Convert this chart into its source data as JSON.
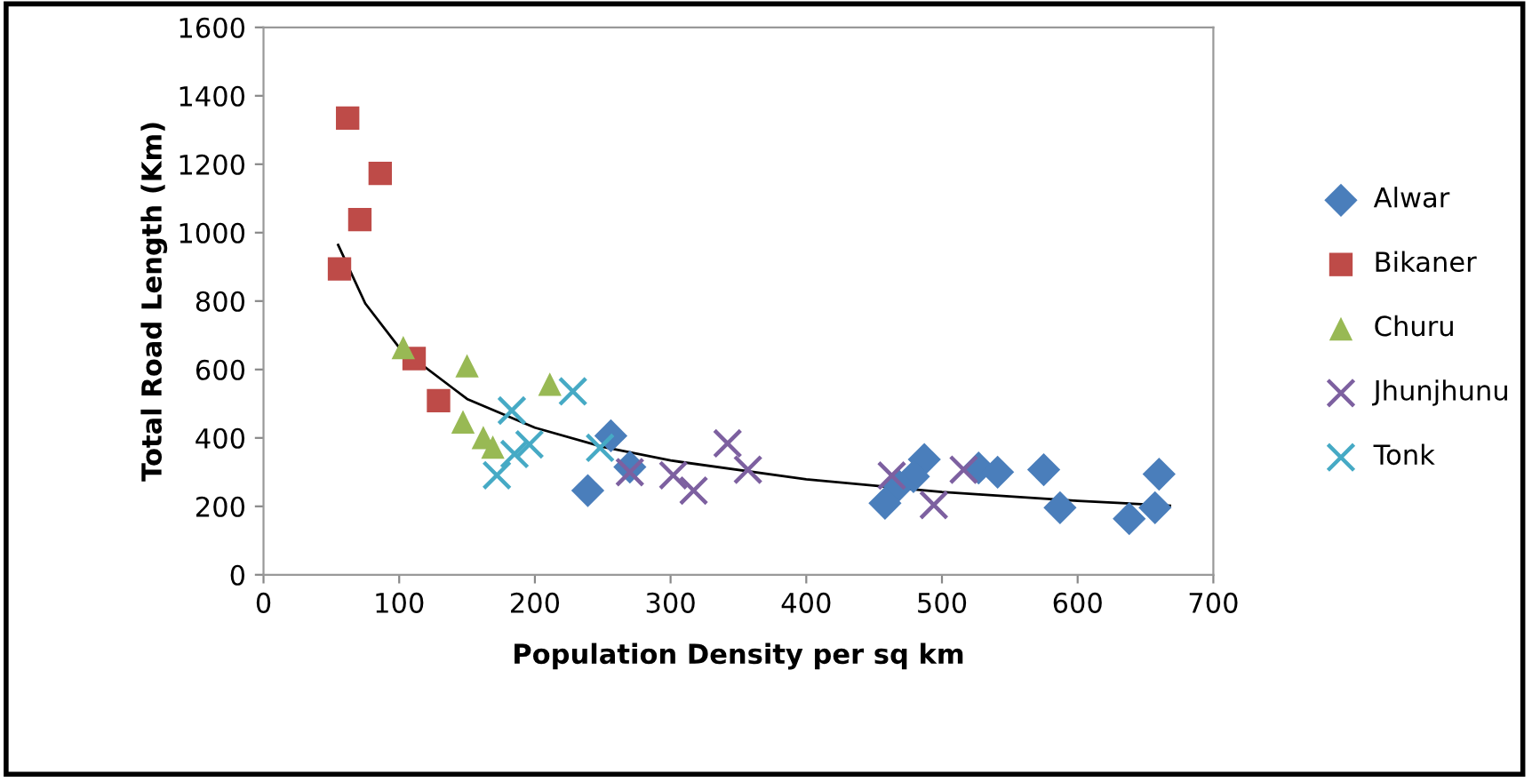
{
  "chart_data": {
    "type": "scatter",
    "xlabel": "Population Density per sq km",
    "ylabel": "Total Road Length (Km)",
    "xlim": [
      0,
      700
    ],
    "xticks": [
      0,
      100,
      200,
      300,
      400,
      500,
      600,
      700
    ],
    "ylim": [
      0,
      1600
    ],
    "yticks": [
      0,
      200,
      400,
      600,
      800,
      1000,
      1200,
      1400,
      1600
    ],
    "grid": false,
    "legend": "right",
    "series": [
      {
        "name": "Alwar",
        "color": "#4a7ebb",
        "marker": "diamond",
        "x": [
          256,
          270,
          239,
          487,
          479,
          468,
          458,
          527,
          541,
          575,
          587,
          638,
          657,
          660
        ],
        "values": [
          406,
          315,
          246,
          337,
          287,
          261,
          209,
          312,
          300,
          307,
          196,
          164,
          196,
          294
        ]
      },
      {
        "name": "Bikaner",
        "color": "#be4b48",
        "marker": "square",
        "x": [
          62,
          86,
          71,
          56,
          111,
          129
        ],
        "values": [
          1335,
          1173,
          1038,
          894,
          632,
          509
        ]
      },
      {
        "name": "Churu",
        "color": "#98b954",
        "marker": "triangle",
        "x": [
          103,
          150,
          211,
          147,
          162,
          169
        ],
        "values": [
          664,
          611,
          557,
          447,
          401,
          373
        ]
      },
      {
        "name": "Jhunjhunu",
        "color": "#7d60a0",
        "marker": "cross",
        "x": [
          270,
          302,
          317,
          342,
          357,
          516,
          494,
          463
        ],
        "values": [
          300,
          291,
          246,
          384,
          307,
          307,
          204,
          290
        ]
      },
      {
        "name": "Tonk",
        "color": "#46aac5",
        "marker": "cross",
        "x": [
          183,
          228,
          196,
          185,
          172,
          248
        ],
        "values": [
          480,
          536,
          381,
          353,
          291,
          371
        ]
      },
      {
        "type": "line",
        "color": "#000000",
        "marker": "none",
        "line_style": "solid",
        "x": [
          55,
          75,
          100,
          150,
          200,
          250,
          300,
          400,
          500,
          600,
          668
        ],
        "values": [
          964,
          793,
          664,
          514,
          430,
          374,
          334,
          279,
          242,
          216,
          202
        ]
      }
    ]
  }
}
